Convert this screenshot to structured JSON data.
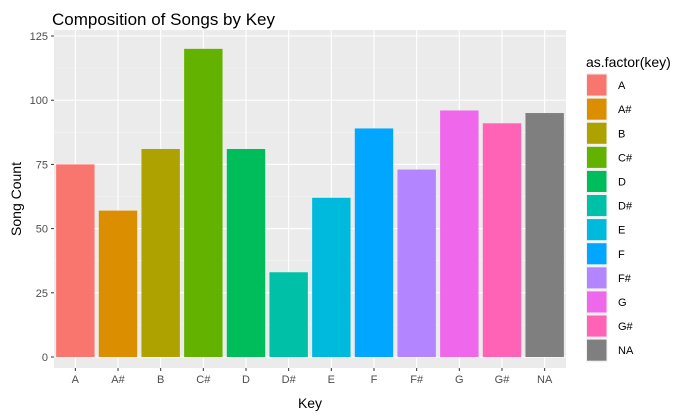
{
  "chart_data": {
    "type": "bar",
    "title": "Composition of Songs by Key",
    "xlabel": "Key",
    "ylabel": "Song Count",
    "categories": [
      "A",
      "A#",
      "B",
      "C#",
      "D",
      "D#",
      "E",
      "F",
      "F#",
      "G",
      "G#",
      "NA"
    ],
    "values": [
      75,
      57,
      81,
      120,
      81,
      33,
      62,
      89,
      73,
      96,
      91,
      95
    ],
    "colors": [
      "#F8766D",
      "#DB8E00",
      "#AEA200",
      "#64B200",
      "#00BD5C",
      "#00C1A7",
      "#00BADE",
      "#00A6FF",
      "#B385FF",
      "#EF67EB",
      "#FF63B6",
      "#7F7F7F"
    ],
    "ylim": [
      0,
      125
    ],
    "yticks": [
      0,
      25,
      50,
      75,
      100,
      125
    ],
    "ytick_labels": [
      "0",
      "25",
      "50",
      "75",
      "100",
      "125"
    ],
    "grid": true,
    "legend": {
      "title": "as.factor(key)",
      "position": "right"
    },
    "background": "#EBEBEB"
  }
}
